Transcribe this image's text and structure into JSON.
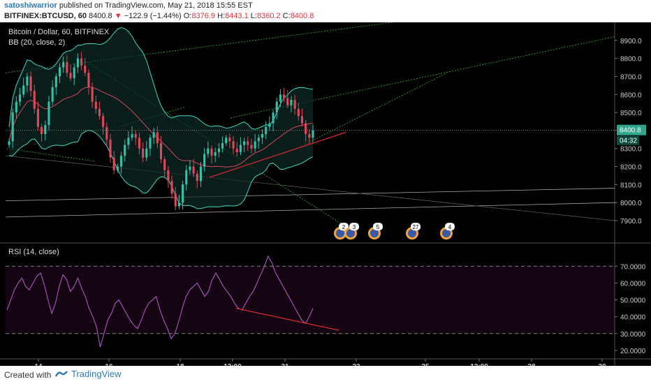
{
  "header": {
    "author": "satoshiwarrior",
    "published": "published on TradingView.com, May 21, 2018 15:55 EST",
    "symbol": "BITFINEX:BTCUSD, 60",
    "last": "8400.8",
    "arrow": "▼",
    "change": "−122.9 (−1.44%)",
    "o_label": "O:",
    "o_val": "8376.9",
    "h_label": "H:",
    "h_val": "8443.1",
    "l_label": "L:",
    "l_val": "8360.2",
    "c_label": "C:",
    "c_val": "8400.8"
  },
  "legend": {
    "pair": "Bitcoin / Dollar, 60, BITFINEX",
    "bb": "BB (20, close, 2)",
    "rsi": "RSI (14, close)"
  },
  "footer": {
    "created": "Created with",
    "brand": "TradingView"
  },
  "colors": {
    "up": "#36c0a8",
    "down": "#e0485a",
    "bb": "#3fd9c0",
    "basis": "#d9485a",
    "rsi": "#c05bd9",
    "rsi_band": "#150512",
    "trend_red": "#e02a2a",
    "trend_green": "#3aa03a",
    "price_label": "#2fa68b",
    "axis_text": "#cccccc"
  },
  "chart_data": [
    {
      "type": "candlestick",
      "title": "Bitcoin / Dollar, 60, BITFINEX",
      "ylim": [
        7780,
        9000
      ],
      "y_ticks": [
        7900,
        8000,
        8100,
        8200,
        8300,
        8400,
        8500,
        8600,
        8700,
        8800,
        8900
      ],
      "x_ticks": [
        "14",
        "16",
        "18",
        "12:00",
        "21",
        "23",
        "25",
        "12:00",
        "28",
        "30"
      ],
      "last_price": 8400.8,
      "countdown": "04:32",
      "event_markers": [
        "2",
        "3",
        "5",
        "27",
        "4"
      ],
      "close_path": [
        8340,
        8500,
        8560,
        8600,
        8650,
        8700,
        8620,
        8520,
        8420,
        8380,
        8430,
        8560,
        8640,
        8700,
        8750,
        8780,
        8720,
        8690,
        8750,
        8800,
        8760,
        8720,
        8640,
        8560,
        8520,
        8480,
        8420,
        8350,
        8250,
        8180,
        8200,
        8260,
        8320,
        8360,
        8380,
        8360,
        8300,
        8250,
        8300,
        8360,
        8390,
        8330,
        8240,
        8180,
        8120,
        8050,
        7980,
        8000,
        8100,
        8180,
        8200,
        8160,
        8120,
        8200,
        8270,
        8300,
        8260,
        8280,
        8300,
        8330,
        8360,
        8340,
        8300,
        8280,
        8320,
        8340,
        8320,
        8300,
        8340,
        8360,
        8380,
        8420,
        8440,
        8500,
        8560,
        8600,
        8580,
        8540,
        8570,
        8520,
        8480,
        8440,
        8380,
        8360,
        8400
      ],
      "bollinger": {
        "period": 20,
        "source": "close",
        "mult": 2
      }
    },
    {
      "type": "line",
      "title": "RSI (14, close)",
      "ylim": [
        15,
        78
      ],
      "y_ticks": [
        20,
        30,
        40,
        50,
        60,
        70
      ],
      "levels": [
        30,
        70
      ],
      "values": [
        44,
        50,
        56,
        60,
        63,
        58,
        56,
        60,
        64,
        66,
        59,
        50,
        42,
        48,
        58,
        65,
        62,
        55,
        58,
        63,
        57,
        52,
        45,
        40,
        34,
        22,
        30,
        38,
        42,
        48,
        50,
        46,
        42,
        38,
        35,
        33,
        38,
        44,
        48,
        50,
        52,
        44,
        38,
        33,
        27,
        30,
        37,
        45,
        52,
        56,
        58,
        60,
        56,
        52,
        55,
        62,
        66,
        62,
        58,
        55,
        52,
        48,
        45,
        44,
        48,
        52,
        55,
        60,
        65,
        70,
        76,
        72,
        66,
        62,
        58,
        54,
        50,
        46,
        42,
        38,
        36,
        40,
        45
      ]
    }
  ]
}
